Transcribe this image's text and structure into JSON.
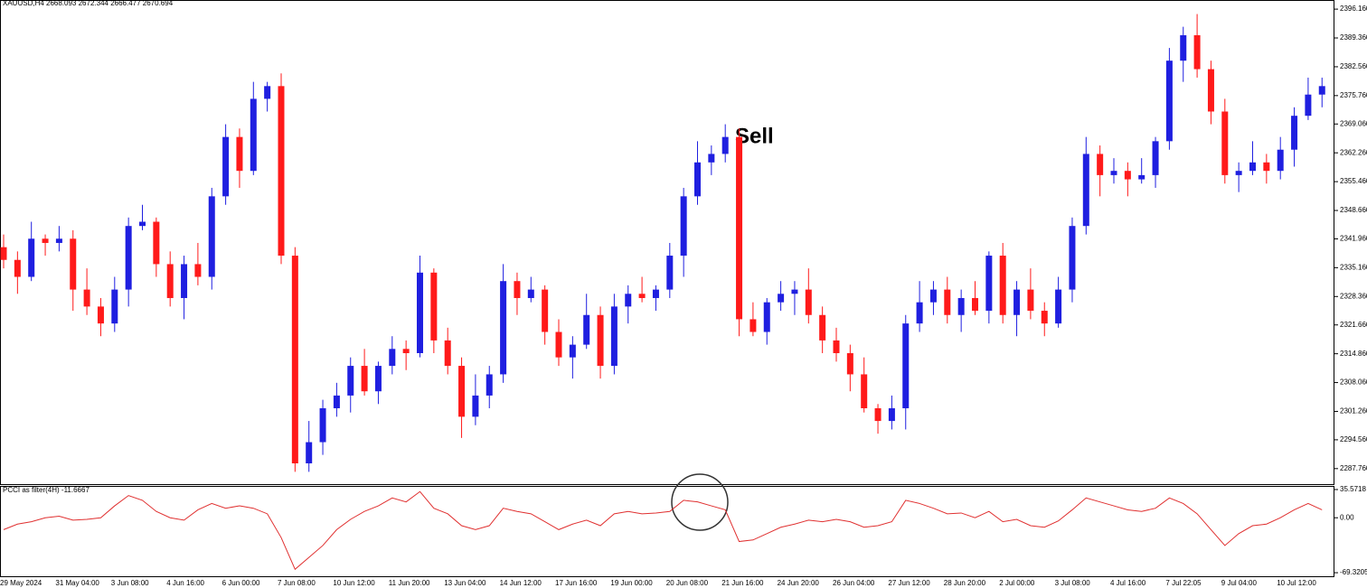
{
  "chart_data": [
    {
      "type": "candlestick",
      "title": "XAUUSD,H4  2668.093 2672.344 2666.477 2670.694",
      "annotation": "Sell",
      "up_color": "#1f1fe0",
      "down_color": "#ff1a1a",
      "x": [
        "29 May 2024",
        null,
        null,
        null,
        "31 May 04:00",
        null,
        null,
        null,
        "3 Jun 08:00",
        null,
        null,
        null,
        "4 Jun 16:00",
        null,
        null,
        null,
        "6 Jun 00:00",
        null,
        null,
        null,
        "7 Jun 08:00",
        null,
        null,
        null,
        "10 Jun 12:00",
        null,
        null,
        null,
        "11 Jun 20:00",
        null,
        null,
        null,
        "13 Jun 04:00",
        null,
        null,
        null,
        "14 Jun 12:00",
        null,
        null,
        null,
        "17 Jun 16:00",
        null,
        null,
        null,
        "19 Jun 00:00",
        null,
        null,
        null,
        "20 Jun 08:00",
        null,
        null,
        null,
        "21 Jun 16:00",
        null,
        null,
        null,
        "24 Jun 20:00",
        null,
        null,
        null,
        "26 Jun 04:00",
        null,
        null,
        null,
        "27 Jun 12:00",
        null,
        null,
        null,
        "28 Jun 20:00",
        null,
        null,
        null,
        "2 Jul 00:00",
        null,
        null,
        null,
        "3 Jul 08:00",
        null,
        null,
        null,
        "4 Jul 16:00",
        null,
        null,
        null,
        "7 Jul 22:05",
        null,
        null,
        null,
        "9 Jul 04:00",
        null,
        null,
        null,
        "10 Jul 12:00",
        null,
        null,
        null
      ],
      "open": [
        2340,
        2337,
        2333,
        2342,
        2341,
        2342,
        2330,
        2326,
        2322,
        2330,
        2345,
        2346,
        2336,
        2328,
        2336,
        2333,
        2352,
        2366,
        2358,
        2375,
        2378,
        2338,
        2289,
        2294,
        2302,
        2305,
        2312,
        2306,
        2312,
        2316,
        2315,
        2334,
        2318,
        2312,
        2300,
        2305,
        2310,
        2332,
        2328,
        2330,
        2320,
        2314,
        2317,
        2324,
        2312,
        2326,
        2329,
        2328,
        2330,
        2338,
        2352,
        2360,
        2362,
        2366,
        2323,
        2320,
        2327,
        2329,
        2330,
        2324,
        2318,
        2315,
        2310,
        2302,
        2299,
        2302,
        2322,
        2327,
        2330,
        2324,
        2328,
        2325,
        2338,
        2324,
        2330,
        2325,
        2322,
        2330,
        2345,
        2362,
        2357,
        2358,
        2356,
        2357,
        2365,
        2384,
        2390,
        2382,
        2372,
        2357,
        2358,
        2360,
        2358,
        2363,
        2371,
        2376
      ],
      "high": [
        2343,
        2339,
        2346,
        2343,
        2345,
        2344,
        2335,
        2328,
        2333,
        2347,
        2350,
        2347,
        2339,
        2338,
        2341,
        2354,
        2369,
        2368,
        2379,
        2379,
        2381,
        2340,
        2299,
        2304,
        2308,
        2314,
        2316,
        2313,
        2319,
        2318,
        2338,
        2335,
        2321,
        2314,
        2310,
        2312,
        2336,
        2334,
        2333,
        2331,
        2323,
        2319,
        2329,
        2326,
        2329,
        2331,
        2333,
        2331,
        2341,
        2354,
        2365,
        2364,
        2369,
        2368,
        2327,
        2328,
        2332,
        2332,
        2335,
        2326,
        2321,
        2317,
        2314,
        2303,
        2305,
        2324,
        2332,
        2332,
        2333,
        2330,
        2332,
        2339,
        2341,
        2332,
        2335,
        2327,
        2333,
        2347,
        2366,
        2364,
        2361,
        2360,
        2361,
        2366,
        2387,
        2392,
        2395,
        2384,
        2375,
        2360,
        2365,
        2362,
        2366,
        2373,
        2380,
        2380
      ],
      "low": [
        2335,
        2329,
        2332,
        2338,
        2339,
        2325,
        2324,
        2319,
        2320,
        2326,
        2344,
        2333,
        2326,
        2323,
        2331,
        2330,
        2350,
        2354,
        2357,
        2372,
        2336,
        2287,
        2287,
        2291,
        2300,
        2301,
        2305,
        2303,
        2310,
        2311,
        2314,
        2315,
        2310,
        2295,
        2298,
        2302,
        2308,
        2324,
        2327,
        2317,
        2312,
        2309,
        2316,
        2309,
        2310,
        2322,
        2327,
        2325,
        2328,
        2333,
        2350,
        2357,
        2360,
        2319,
        2319,
        2317,
        2325,
        2324,
        2322,
        2315,
        2313,
        2306,
        2301,
        2296,
        2297,
        2297,
        2320,
        2324,
        2322,
        2320,
        2324,
        2322,
        2322,
        2319,
        2323,
        2319,
        2321,
        2327,
        2343,
        2352,
        2355,
        2352,
        2355,
        2354,
        2363,
        2379,
        2380,
        2369,
        2355,
        2353,
        2357,
        2355,
        2356,
        2359,
        2370,
        2373
      ],
      "close": [
        2337,
        2333,
        2342,
        2341,
        2342,
        2330,
        2326,
        2322,
        2330,
        2345,
        2346,
        2336,
        2328,
        2336,
        2333,
        2352,
        2366,
        2358,
        2375,
        2378,
        2338,
        2289,
        2294,
        2302,
        2305,
        2312,
        2306,
        2312,
        2316,
        2315,
        2334,
        2318,
        2312,
        2300,
        2305,
        2310,
        2332,
        2328,
        2330,
        2320,
        2314,
        2317,
        2324,
        2312,
        2326,
        2329,
        2328,
        2330,
        2338,
        2352,
        2360,
        2362,
        2366,
        2323,
        2320,
        2327,
        2329,
        2330,
        2324,
        2318,
        2315,
        2310,
        2302,
        2299,
        2302,
        2322,
        2327,
        2330,
        2324,
        2328,
        2325,
        2338,
        2324,
        2330,
        2325,
        2322,
        2330,
        2345,
        2362,
        2357,
        2358,
        2356,
        2357,
        2365,
        2384,
        2390,
        2382,
        2372,
        2357,
        2358,
        2360,
        2358,
        2363,
        2371,
        2376,
        2378
      ],
      "ylim": [
        2284.1,
        2398.1
      ],
      "yticks": [
        {
          "value": 2396.16,
          "label": "2396.160"
        },
        {
          "value": 2389.36,
          "label": "2389.360"
        },
        {
          "value": 2382.56,
          "label": "2382.560"
        },
        {
          "value": 2375.76,
          "label": "2375.760"
        },
        {
          "value": 2369.06,
          "label": "2369.060"
        },
        {
          "value": 2362.26,
          "label": "2362.260"
        },
        {
          "value": 2355.46,
          "label": "2355.460"
        },
        {
          "value": 2348.66,
          "label": "2348.660"
        },
        {
          "value": 2341.96,
          "label": "2341.960"
        },
        {
          "value": 2335.16,
          "label": "2335.160"
        },
        {
          "value": 2328.36,
          "label": "2328.360"
        },
        {
          "value": 2321.66,
          "label": "2321.660"
        },
        {
          "value": 2314.86,
          "label": "2314.860"
        },
        {
          "value": 2308.06,
          "label": "2308.060"
        },
        {
          "value": 2301.26,
          "label": "2301.260"
        },
        {
          "value": 2294.56,
          "label": "2294.560"
        },
        {
          "value": 2287.76,
          "label": "2287.760"
        }
      ]
    },
    {
      "type": "line",
      "title": "PCCI as filter(4H) -11.6667",
      "color": "#e03030",
      "values": [
        -15,
        -8,
        -5,
        0,
        2,
        -3,
        -2,
        0,
        15,
        28,
        22,
        8,
        0,
        -3,
        10,
        18,
        12,
        15,
        12,
        5,
        -25,
        -65,
        -50,
        -35,
        -15,
        -2,
        8,
        15,
        25,
        20,
        33,
        12,
        5,
        -10,
        -15,
        -10,
        12,
        8,
        5,
        -5,
        -15,
        -8,
        -3,
        -10,
        5,
        8,
        5,
        6,
        8,
        22,
        20,
        15,
        10,
        -30,
        -28,
        -20,
        -12,
        -8,
        -3,
        -5,
        -2,
        -5,
        -12,
        -10,
        -5,
        22,
        18,
        12,
        5,
        6,
        0,
        8,
        -5,
        -2,
        -10,
        -12,
        -4,
        10,
        25,
        20,
        15,
        10,
        8,
        12,
        25,
        18,
        5,
        -15,
        -35,
        -20,
        -10,
        -8,
        0,
        10,
        18,
        10
      ],
      "ylim": [
        -73.8,
        39.0
      ],
      "yticks": [
        35.5718,
        {
          "value": 0,
          "label": "0.00"
        },
        -69.3205
      ]
    }
  ]
}
